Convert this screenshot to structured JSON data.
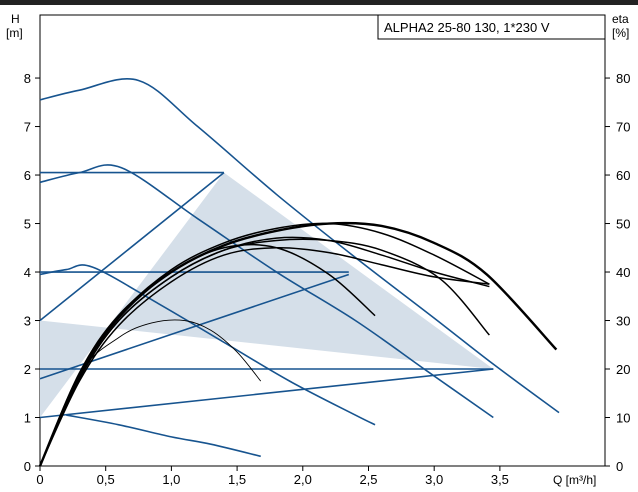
{
  "chart_data": {
    "type": "line",
    "title": "ALPHA2 25-80 130, 1*230 V",
    "ylabel_left": "H",
    "ylabel_left_unit": "[m]",
    "ylabel_right": "eta",
    "ylabel_right_unit": "[%]",
    "xlabel": "Q [m³/h]",
    "xlim": [
      0,
      4.3
    ],
    "ylim": [
      0,
      9.3
    ],
    "ylim_right": [
      0,
      93
    ],
    "x_ticks": [
      "0",
      "0,5",
      "1,0",
      "1,5",
      "2,0",
      "2,5",
      "3,0",
      "3,5"
    ],
    "x_tick_values": [
      0,
      0.5,
      1.0,
      1.5,
      2.0,
      2.5,
      3.0,
      3.5
    ],
    "y_ticks": [
      "0",
      "1",
      "2",
      "3",
      "4",
      "5",
      "6",
      "7",
      "8"
    ],
    "y_tick_values": [
      0,
      1,
      2,
      3,
      4,
      5,
      6,
      7,
      8
    ],
    "y_right_ticks": [
      "0",
      "10",
      "20",
      "30",
      "40",
      "50",
      "60",
      "70",
      "80"
    ],
    "y_right_tick_values": [
      0,
      10,
      20,
      30,
      40,
      50,
      60,
      70,
      80
    ],
    "grid": false,
    "colors": {
      "pump_curve": "#17548f",
      "efficiency": "#000000",
      "operating_area": "#d5dfe9"
    },
    "operating_area": {
      "x": [
        0,
        1.4,
        3.45,
        0
      ],
      "y": [
        1,
        6.05,
        2,
        3
      ]
    },
    "series": [
      {
        "kind": "pump",
        "x": [
          0,
          0.3,
          0.75,
          1.2,
          1.8,
          2.4,
          3.0,
          3.45,
          3.95
        ],
        "y": [
          7.55,
          7.75,
          7.95,
          7.0,
          5.6,
          4.3,
          3.05,
          2.1,
          1.1
        ]
      },
      {
        "kind": "pump",
        "x": [
          0,
          0.3,
          0.62,
          1.2,
          1.8,
          2.4,
          2.95,
          3.45
        ],
        "y": [
          5.85,
          6.05,
          6.15,
          5.1,
          4.0,
          3.0,
          1.95,
          1.0
        ]
      },
      {
        "kind": "pump",
        "x": [
          0,
          0.2,
          0.4,
          0.9,
          1.4,
          1.9,
          2.4,
          2.55
        ],
        "y": [
          3.95,
          4.05,
          4.1,
          3.35,
          2.55,
          1.75,
          1.05,
          0.85
        ]
      },
      {
        "kind": "pump",
        "x": [
          0.2,
          0.6,
          1.0,
          1.3,
          1.68
        ],
        "y": [
          1.05,
          0.85,
          0.6,
          0.45,
          0.2
        ]
      },
      {
        "kind": "pump",
        "x": [
          0,
          1.4
        ],
        "y": [
          6.05,
          6.05
        ]
      },
      {
        "kind": "pump",
        "x": [
          0,
          2.35
        ],
        "y": [
          4.0,
          4.0
        ]
      },
      {
        "kind": "pump",
        "x": [
          0,
          3.45
        ],
        "y": [
          2.0,
          2.0
        ]
      },
      {
        "kind": "pump",
        "x": [
          0,
          2.35
        ],
        "y": [
          1.8,
          3.95
        ]
      },
      {
        "kind": "pump",
        "x": [
          0,
          1.4
        ],
        "y": [
          3.0,
          6.05
        ]
      },
      {
        "kind": "pump",
        "x": [
          0,
          3.45
        ],
        "y": [
          1.0,
          2.0
        ]
      },
      {
        "kind": "efficiency",
        "width": 2.4,
        "x": [
          0,
          0.3,
          0.6,
          1.0,
          1.4,
          1.8,
          2.2,
          2.6,
          3.0,
          3.4,
          3.93
        ],
        "y": [
          0,
          19,
          31,
          40,
          45.5,
          48.5,
          50,
          49.5,
          46,
          39.5,
          24
        ]
      },
      {
        "kind": "efficiency",
        "width": 1.5,
        "x": [
          0,
          0.3,
          0.6,
          1.0,
          1.4,
          1.8,
          2.2,
          2.6,
          3.05,
          3.42
        ],
        "y": [
          0,
          18,
          30,
          39,
          44.5,
          46.5,
          46.5,
          44.5,
          38.5,
          27
        ]
      },
      {
        "kind": "efficiency",
        "width": 1.5,
        "x": [
          0,
          0.3,
          0.6,
          1.0,
          1.4,
          1.8,
          2.2,
          2.55
        ],
        "y": [
          0,
          18.5,
          30.5,
          40,
          45,
          45,
          39.5,
          31
        ]
      },
      {
        "kind": "efficiency",
        "width": 1.5,
        "x": [
          0,
          0.3,
          0.6,
          1.0,
          1.4,
          1.8,
          2.2,
          2.6,
          3.0,
          3.42
        ],
        "y": [
          0,
          19,
          31,
          40.5,
          46,
          49,
          50,
          48,
          43.5,
          37.5
        ]
      },
      {
        "kind": "efficiency",
        "width": 1.5,
        "x": [
          0,
          0.3,
          0.6,
          1.0,
          1.4,
          1.8,
          2.2,
          2.6,
          3.0,
          3.42
        ],
        "y": [
          0,
          18,
          30,
          39,
          44.5,
          47,
          46.5,
          43.5,
          40,
          37
        ]
      },
      {
        "kind": "efficiency",
        "width": 1.5,
        "x": [
          0,
          0.3,
          0.6,
          1.0,
          1.4,
          1.8,
          2.2,
          2.6,
          3.0,
          3.42
        ],
        "y": [
          0,
          17.5,
          29,
          38,
          43.5,
          45,
          44,
          41.5,
          39,
          37.5
        ]
      },
      {
        "kind": "efficiency",
        "width": 0.9,
        "x": [
          0,
          0.3,
          0.6,
          0.85,
          1.1,
          1.3,
          1.5,
          1.68
        ],
        "y": [
          0,
          19,
          26.5,
          29.5,
          30,
          28,
          23.5,
          17.5
        ]
      }
    ]
  }
}
